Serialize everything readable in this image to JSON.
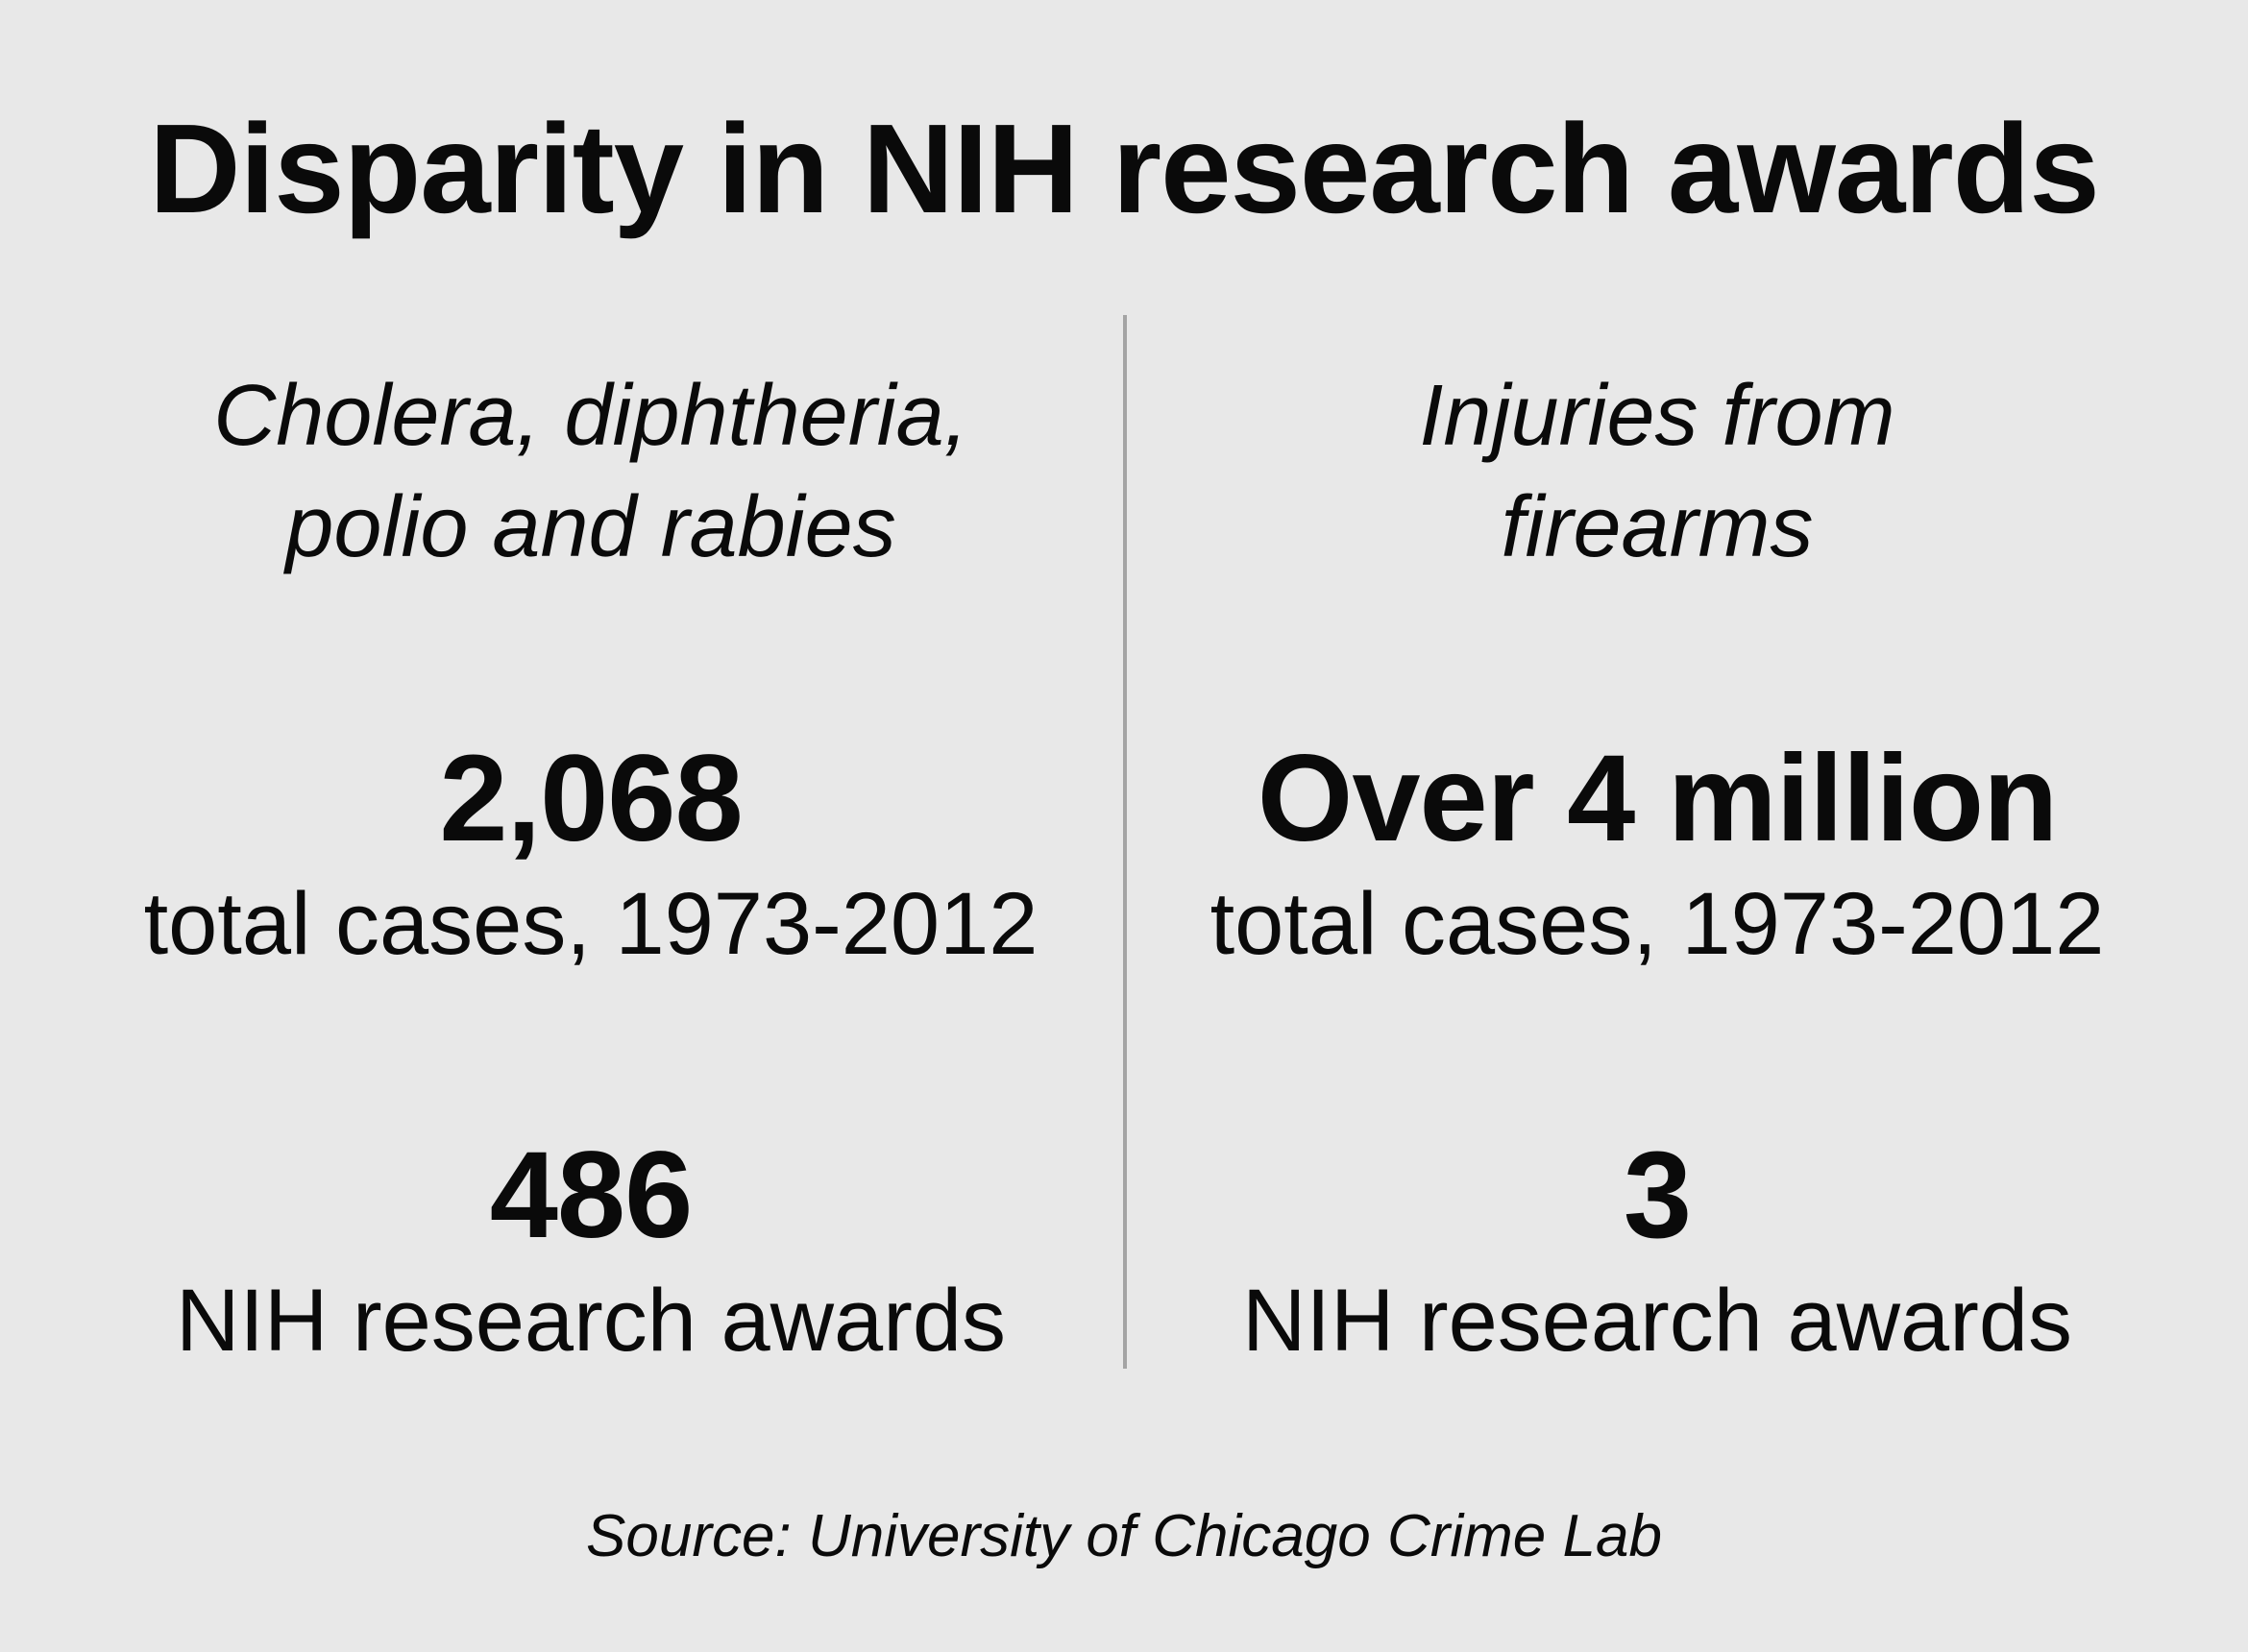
{
  "title": "Disparity in NIH research awards",
  "left": {
    "heading_lines": [
      "Cholera, diphtheria,",
      "polio and rabies"
    ],
    "cases_value": "2,068",
    "cases_label": "total cases, 1973-2012",
    "awards_value": "486",
    "awards_label": "NIH research awards"
  },
  "right": {
    "heading_lines": [
      "Injuries from",
      "firearms"
    ],
    "cases_value": "Over 4 million",
    "cases_label": "total cases, 1973-2012",
    "awards_value": "3",
    "awards_label": "NIH research awards"
  },
  "source": "Source: University of Chicago Crime Lab",
  "colors": {
    "background": "#e8e8e8",
    "text": "#0a0a0a",
    "divider": "#a4a4a4"
  }
}
